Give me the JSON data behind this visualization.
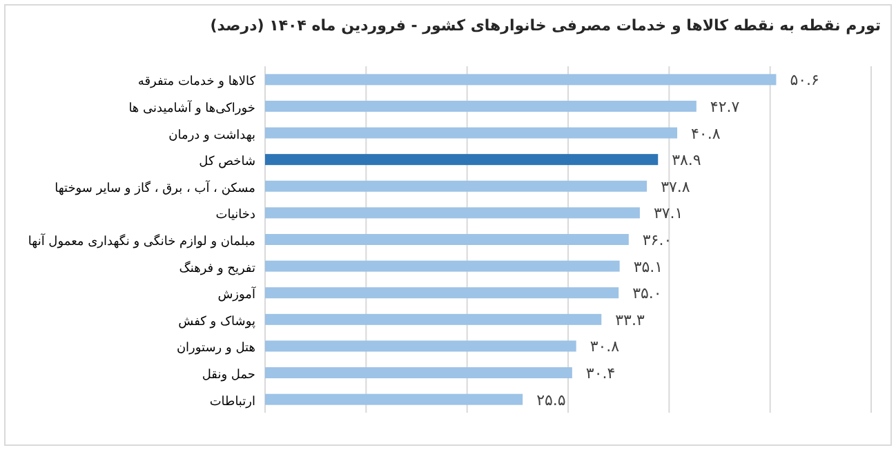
{
  "chart_data": {
    "type": "bar",
    "orientation": "horizontal",
    "title": "تورم نقطه به نقطه کالاها و خدمات مصرفی خانوارهای کشور - فروردین ماه ۱۴۰۴ (درصد)",
    "categories": [
      "کالاها و خدمات متفرقه",
      "خوراکی‌ها و آشامیدنی ها",
      "بهداشت و درمان",
      "شاخص کل",
      "مسکن ، آب ، برق ، گاز و سایر سوختها",
      "دخانیات",
      "مبلمان و لوازم خانگی و نگهداری معمول آنها",
      "تفریح و فرهنگ",
      "آموزش",
      "پوشاک و کفش",
      "هتل و رستوران",
      "حمل ونقل",
      "ارتباطات"
    ],
    "values": [
      50.6,
      42.7,
      40.8,
      38.9,
      37.8,
      37.1,
      36.0,
      35.1,
      35.0,
      33.3,
      30.8,
      30.4,
      25.5
    ],
    "value_labels": [
      "۵۰.۶",
      "۴۲.۷",
      "۴۰.۸",
      "۳۸.۹",
      "۳۷.۸",
      "۳۷.۱",
      "۳۶.۰",
      "۳۵.۱",
      "۳۵.۰",
      "۳۳.۳",
      "۳۰.۸",
      "۳۰.۴",
      "۲۵.۵"
    ],
    "colors": [
      "#9dc3e6",
      "#9dc3e6",
      "#9dc3e6",
      "#2e75b6",
      "#9dc3e6",
      "#9dc3e6",
      "#9dc3e6",
      "#9dc3e6",
      "#9dc3e6",
      "#9dc3e6",
      "#9dc3e6",
      "#9dc3e6",
      "#9dc3e6"
    ],
    "xlim": [
      0,
      60
    ],
    "xticks": [
      {
        "value": 0,
        "label": null
      },
      {
        "value": 10,
        "label": null
      },
      {
        "value": 20,
        "label": null
      },
      {
        "value": 30,
        "label": null
      },
      {
        "value": 40,
        "label": null
      },
      {
        "value": 50,
        "label": null
      },
      {
        "value": 60,
        "label": null
      }
    ],
    "tick_labels": "y",
    "grid": "x"
  }
}
